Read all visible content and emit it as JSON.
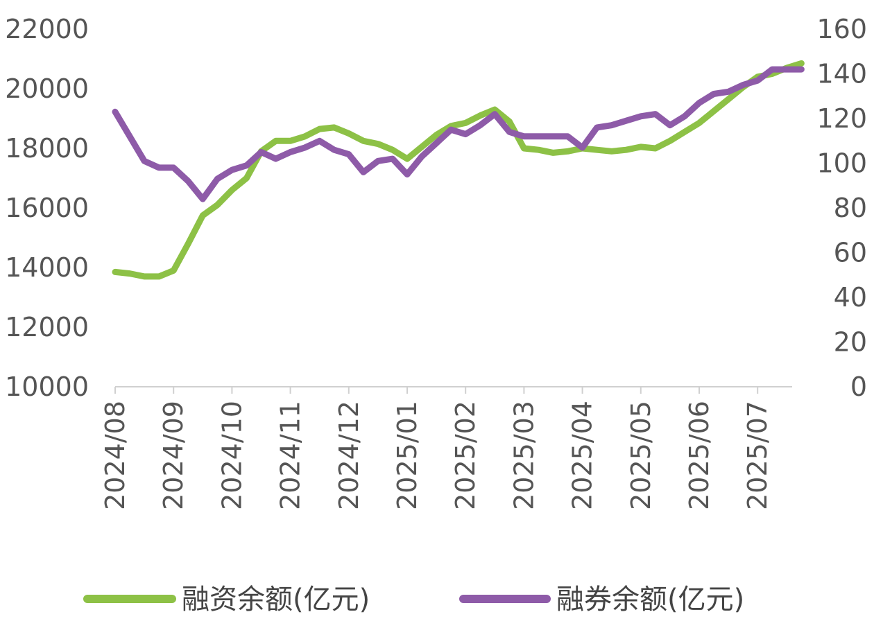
{
  "chart_data": {
    "type": "line",
    "x": [
      0.0,
      0.25,
      0.5,
      0.75,
      1.0,
      1.25,
      1.5,
      1.75,
      2.0,
      2.25,
      2.5,
      2.75,
      3.0,
      3.25,
      3.5,
      3.75,
      4.0,
      4.25,
      4.5,
      4.75,
      5.0,
      5.25,
      5.5,
      5.75,
      6.0,
      6.25,
      6.5,
      6.75,
      7.0,
      7.25,
      7.5,
      7.75,
      8.0,
      8.25,
      8.5,
      8.75,
      9.0,
      9.25,
      9.5,
      9.75,
      10.0,
      10.25,
      10.5,
      10.75,
      11.0,
      11.25,
      11.5,
      11.75
    ],
    "x_tick_labels": [
      "2024/08",
      "2024/09",
      "2024/10",
      "2024/11",
      "2024/12",
      "2025/01",
      "2025/02",
      "2025/03",
      "2025/04",
      "2025/05",
      "2025/06",
      "2025/07"
    ],
    "y_left": {
      "ticks": [
        "10000",
        "12000",
        "14000",
        "16000",
        "18000",
        "20000",
        "22000"
      ],
      "range": [
        10000,
        22000
      ]
    },
    "y_right": {
      "ticks": [
        "0",
        "20",
        "40",
        "60",
        "80",
        "100",
        "120",
        "140",
        "160"
      ],
      "range": [
        0,
        160
      ]
    },
    "series": [
      {
        "name": "融资余额(亿元)",
        "axis": "left",
        "color": "#8dc146",
        "values": [
          13850,
          13800,
          13700,
          13700,
          13900,
          14800,
          15750,
          16100,
          16600,
          17000,
          17900,
          18250,
          18250,
          18400,
          18650,
          18700,
          18500,
          18250,
          18150,
          17950,
          17650,
          18050,
          18450,
          18750,
          18850,
          19100,
          19300,
          18900,
          18000,
          17950,
          17850,
          17900,
          18000,
          17950,
          17900,
          17950,
          18050,
          18000,
          18250,
          18550,
          18850,
          19250,
          19650,
          20050,
          20400,
          20500,
          20700,
          20850
        ]
      },
      {
        "name": "融券余额(亿元)",
        "axis": "right",
        "color": "#8e5ba8",
        "values": [
          123,
          112,
          101,
          98,
          98,
          92,
          84,
          93,
          97,
          99,
          105,
          102,
          105,
          107,
          110,
          106,
          104,
          96,
          101,
          102,
          95,
          103,
          109,
          115,
          113,
          117,
          122,
          114,
          112,
          112,
          112,
          112,
          107,
          116,
          117,
          119,
          121,
          122,
          117,
          121,
          127,
          131,
          132,
          135,
          137,
          142,
          142,
          142
        ]
      }
    ],
    "grid": false,
    "legend_position": "bottom"
  }
}
